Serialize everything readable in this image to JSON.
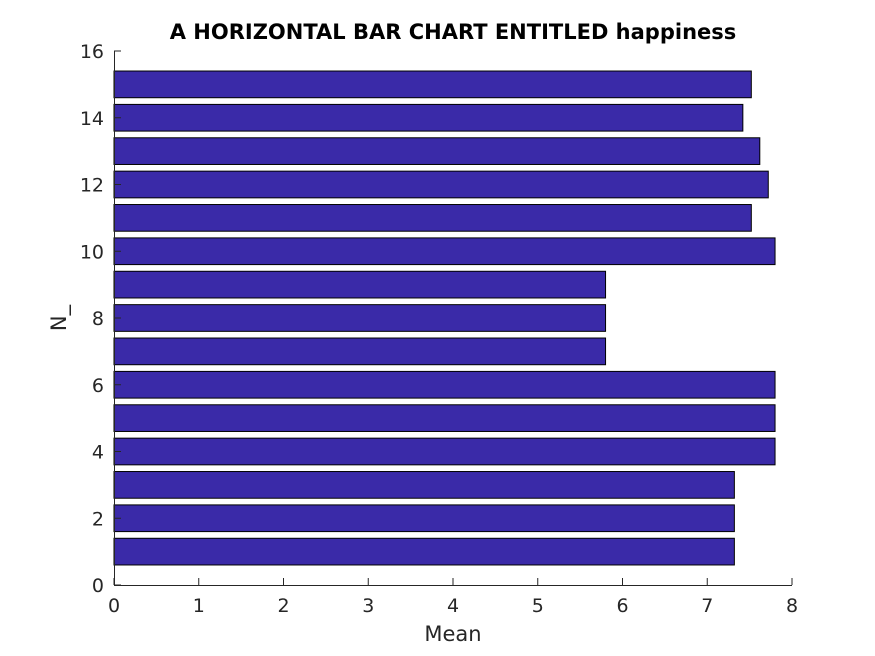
{
  "chart_data": {
    "type": "bar",
    "orientation": "horizontal",
    "title": "A HORIZONTAL BAR CHART ENTITLED happiness",
    "xlabel": "Mean",
    "ylabel": "N_",
    "xlim": [
      0,
      8
    ],
    "ylim": [
      0,
      16
    ],
    "xticks": [
      "0",
      "1",
      "2",
      "3",
      "4",
      "5",
      "6",
      "7",
      "8"
    ],
    "yticks": [
      "0",
      "2",
      "4",
      "6",
      "8",
      "10",
      "12",
      "14",
      "16"
    ],
    "categories": [
      1,
      2,
      3,
      4,
      5,
      6,
      7,
      8,
      9,
      10,
      11,
      12,
      13,
      14,
      15
    ],
    "values": [
      7.32,
      7.32,
      7.32,
      7.8,
      7.8,
      7.8,
      5.8,
      5.8,
      5.8,
      7.8,
      7.52,
      7.72,
      7.62,
      7.42,
      7.52
    ],
    "grid": false,
    "bar_color": "#3a2aa8",
    "bar_edge_color": "#000000"
  }
}
